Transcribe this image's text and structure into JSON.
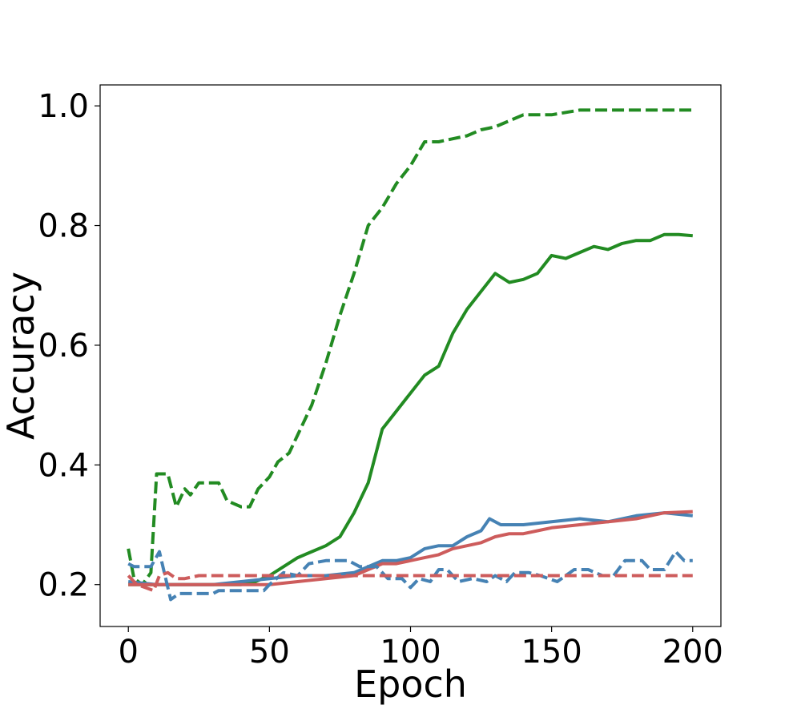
{
  "chart_data": {
    "type": "line",
    "title": "",
    "xlabel": "Epoch",
    "ylabel": "Accuracy",
    "xlim": [
      -10,
      210
    ],
    "ylim": [
      0.13,
      1.035
    ],
    "x_ticks": [
      "0",
      "50",
      "100",
      "150",
      "200"
    ],
    "y_ticks": [
      "0.2",
      "0.4",
      "0.6",
      "0.8",
      "1.0"
    ],
    "grid": false,
    "legend": "none",
    "series": [
      {
        "color": "#228B22",
        "style": "dashed",
        "points": [
          [
            0,
            0.26
          ],
          [
            2,
            0.21
          ],
          [
            5,
            0.2
          ],
          [
            8,
            0.22
          ],
          [
            10,
            0.385
          ],
          [
            14,
            0.385
          ],
          [
            17,
            0.33
          ],
          [
            20,
            0.36
          ],
          [
            22,
            0.35
          ],
          [
            25,
            0.37
          ],
          [
            32,
            0.37
          ],
          [
            35,
            0.34
          ],
          [
            40,
            0.33
          ],
          [
            43,
            0.33
          ],
          [
            46,
            0.36
          ],
          [
            50,
            0.38
          ],
          [
            53,
            0.405
          ],
          [
            57,
            0.42
          ],
          [
            60,
            0.45
          ],
          [
            65,
            0.5
          ],
          [
            70,
            0.57
          ],
          [
            75,
            0.65
          ],
          [
            80,
            0.72
          ],
          [
            85,
            0.8
          ],
          [
            90,
            0.83
          ],
          [
            95,
            0.87
          ],
          [
            100,
            0.9
          ],
          [
            105,
            0.94
          ],
          [
            110,
            0.94
          ],
          [
            115,
            0.945
          ],
          [
            120,
            0.95
          ],
          [
            125,
            0.96
          ],
          [
            130,
            0.965
          ],
          [
            135,
            0.975
          ],
          [
            140,
            0.985
          ],
          [
            150,
            0.985
          ],
          [
            160,
            0.993
          ],
          [
            200,
            0.993
          ]
        ]
      },
      {
        "color": "#228B22",
        "style": "solid",
        "points": [
          [
            0,
            0.2
          ],
          [
            20,
            0.2
          ],
          [
            40,
            0.2
          ],
          [
            45,
            0.205
          ],
          [
            50,
            0.215
          ],
          [
            55,
            0.23
          ],
          [
            60,
            0.245
          ],
          [
            65,
            0.255
          ],
          [
            70,
            0.265
          ],
          [
            75,
            0.28
          ],
          [
            80,
            0.32
          ],
          [
            85,
            0.37
          ],
          [
            90,
            0.46
          ],
          [
            95,
            0.49
          ],
          [
            100,
            0.52
          ],
          [
            105,
            0.55
          ],
          [
            110,
            0.565
          ],
          [
            115,
            0.62
          ],
          [
            120,
            0.66
          ],
          [
            125,
            0.69
          ],
          [
            130,
            0.72
          ],
          [
            135,
            0.705
          ],
          [
            140,
            0.71
          ],
          [
            145,
            0.72
          ],
          [
            150,
            0.75
          ],
          [
            155,
            0.745
          ],
          [
            160,
            0.755
          ],
          [
            165,
            0.765
          ],
          [
            170,
            0.76
          ],
          [
            175,
            0.77
          ],
          [
            180,
            0.775
          ],
          [
            185,
            0.775
          ],
          [
            190,
            0.785
          ],
          [
            195,
            0.785
          ],
          [
            200,
            0.783
          ]
        ]
      },
      {
        "color": "#4682B4",
        "style": "solid",
        "points": [
          [
            0,
            0.205
          ],
          [
            10,
            0.2
          ],
          [
            20,
            0.2
          ],
          [
            30,
            0.2
          ],
          [
            40,
            0.205
          ],
          [
            50,
            0.21
          ],
          [
            60,
            0.215
          ],
          [
            70,
            0.215
          ],
          [
            80,
            0.22
          ],
          [
            85,
            0.23
          ],
          [
            90,
            0.24
          ],
          [
            95,
            0.24
          ],
          [
            100,
            0.245
          ],
          [
            105,
            0.26
          ],
          [
            110,
            0.265
          ],
          [
            115,
            0.265
          ],
          [
            120,
            0.28
          ],
          [
            125,
            0.29
          ],
          [
            128,
            0.31
          ],
          [
            132,
            0.3
          ],
          [
            140,
            0.3
          ],
          [
            150,
            0.305
          ],
          [
            160,
            0.31
          ],
          [
            170,
            0.305
          ],
          [
            180,
            0.315
          ],
          [
            190,
            0.32
          ],
          [
            200,
            0.315
          ]
        ]
      },
      {
        "color": "#CD5C5C",
        "style": "solid",
        "points": [
          [
            0,
            0.2
          ],
          [
            10,
            0.2
          ],
          [
            20,
            0.2
          ],
          [
            30,
            0.2
          ],
          [
            40,
            0.2
          ],
          [
            50,
            0.2
          ],
          [
            60,
            0.205
          ],
          [
            70,
            0.21
          ],
          [
            80,
            0.215
          ],
          [
            85,
            0.225
          ],
          [
            90,
            0.235
          ],
          [
            95,
            0.235
          ],
          [
            100,
            0.24
          ],
          [
            105,
            0.245
          ],
          [
            110,
            0.25
          ],
          [
            115,
            0.26
          ],
          [
            120,
            0.265
          ],
          [
            125,
            0.27
          ],
          [
            130,
            0.28
          ],
          [
            135,
            0.285
          ],
          [
            140,
            0.285
          ],
          [
            145,
            0.29
          ],
          [
            150,
            0.295
          ],
          [
            160,
            0.3
          ],
          [
            170,
            0.305
          ],
          [
            180,
            0.31
          ],
          [
            190,
            0.32
          ],
          [
            200,
            0.322
          ]
        ]
      },
      {
        "color": "#4682B4",
        "style": "dashed",
        "points": [
          [
            0,
            0.235
          ],
          [
            2,
            0.23
          ],
          [
            8,
            0.23
          ],
          [
            11,
            0.255
          ],
          [
            13,
            0.215
          ],
          [
            15,
            0.175
          ],
          [
            18,
            0.185
          ],
          [
            30,
            0.185
          ],
          [
            32,
            0.19
          ],
          [
            40,
            0.19
          ],
          [
            48,
            0.19
          ],
          [
            50,
            0.2
          ],
          [
            55,
            0.22
          ],
          [
            60,
            0.215
          ],
          [
            64,
            0.235
          ],
          [
            70,
            0.24
          ],
          [
            78,
            0.24
          ],
          [
            82,
            0.23
          ],
          [
            88,
            0.23
          ],
          [
            92,
            0.21
          ],
          [
            97,
            0.21
          ],
          [
            100,
            0.195
          ],
          [
            103,
            0.21
          ],
          [
            107,
            0.205
          ],
          [
            110,
            0.225
          ],
          [
            113,
            0.225
          ],
          [
            117,
            0.205
          ],
          [
            122,
            0.21
          ],
          [
            127,
            0.205
          ],
          [
            130,
            0.215
          ],
          [
            134,
            0.205
          ],
          [
            137,
            0.22
          ],
          [
            142,
            0.22
          ],
          [
            146,
            0.215
          ],
          [
            152,
            0.205
          ],
          [
            158,
            0.225
          ],
          [
            163,
            0.225
          ],
          [
            168,
            0.215
          ],
          [
            172,
            0.215
          ],
          [
            176,
            0.24
          ],
          [
            182,
            0.24
          ],
          [
            185,
            0.225
          ],
          [
            190,
            0.225
          ],
          [
            194,
            0.255
          ],
          [
            197,
            0.24
          ],
          [
            200,
            0.24
          ]
        ]
      },
      {
        "color": "#CD5C5C",
        "style": "dashed",
        "points": [
          [
            0,
            0.215
          ],
          [
            3,
            0.2
          ],
          [
            6,
            0.195
          ],
          [
            9,
            0.19
          ],
          [
            11,
            0.215
          ],
          [
            14,
            0.22
          ],
          [
            17,
            0.21
          ],
          [
            20,
            0.21
          ],
          [
            25,
            0.215
          ],
          [
            30,
            0.215
          ],
          [
            50,
            0.215
          ],
          [
            100,
            0.215
          ],
          [
            150,
            0.215
          ],
          [
            200,
            0.215
          ]
        ]
      }
    ]
  }
}
